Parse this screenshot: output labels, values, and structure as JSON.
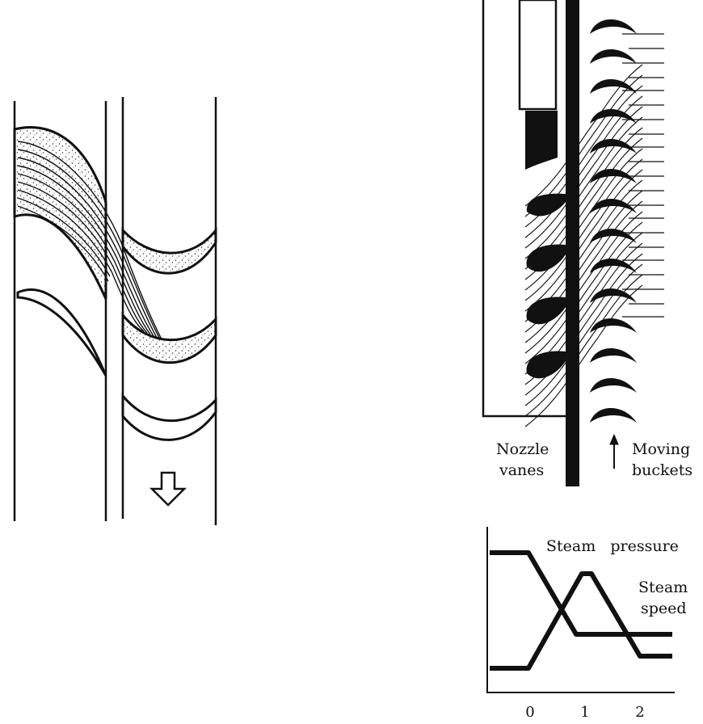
{
  "labels": {
    "nozzle_vanes_line1": "Nozzle",
    "nozzle_vanes_line2": "vanes",
    "moving_buckets_line1": "Moving",
    "moving_buckets_line2": "buckets",
    "steam_pressure": "Steam   pressure",
    "steam_speed_line1": "Steam",
    "steam_speed_line2": "speed"
  },
  "graph": {
    "x_ticks": [
      "0",
      "1",
      "2"
    ]
  },
  "colors": {
    "ink": "#111111",
    "paper": "#ffffff"
  }
}
